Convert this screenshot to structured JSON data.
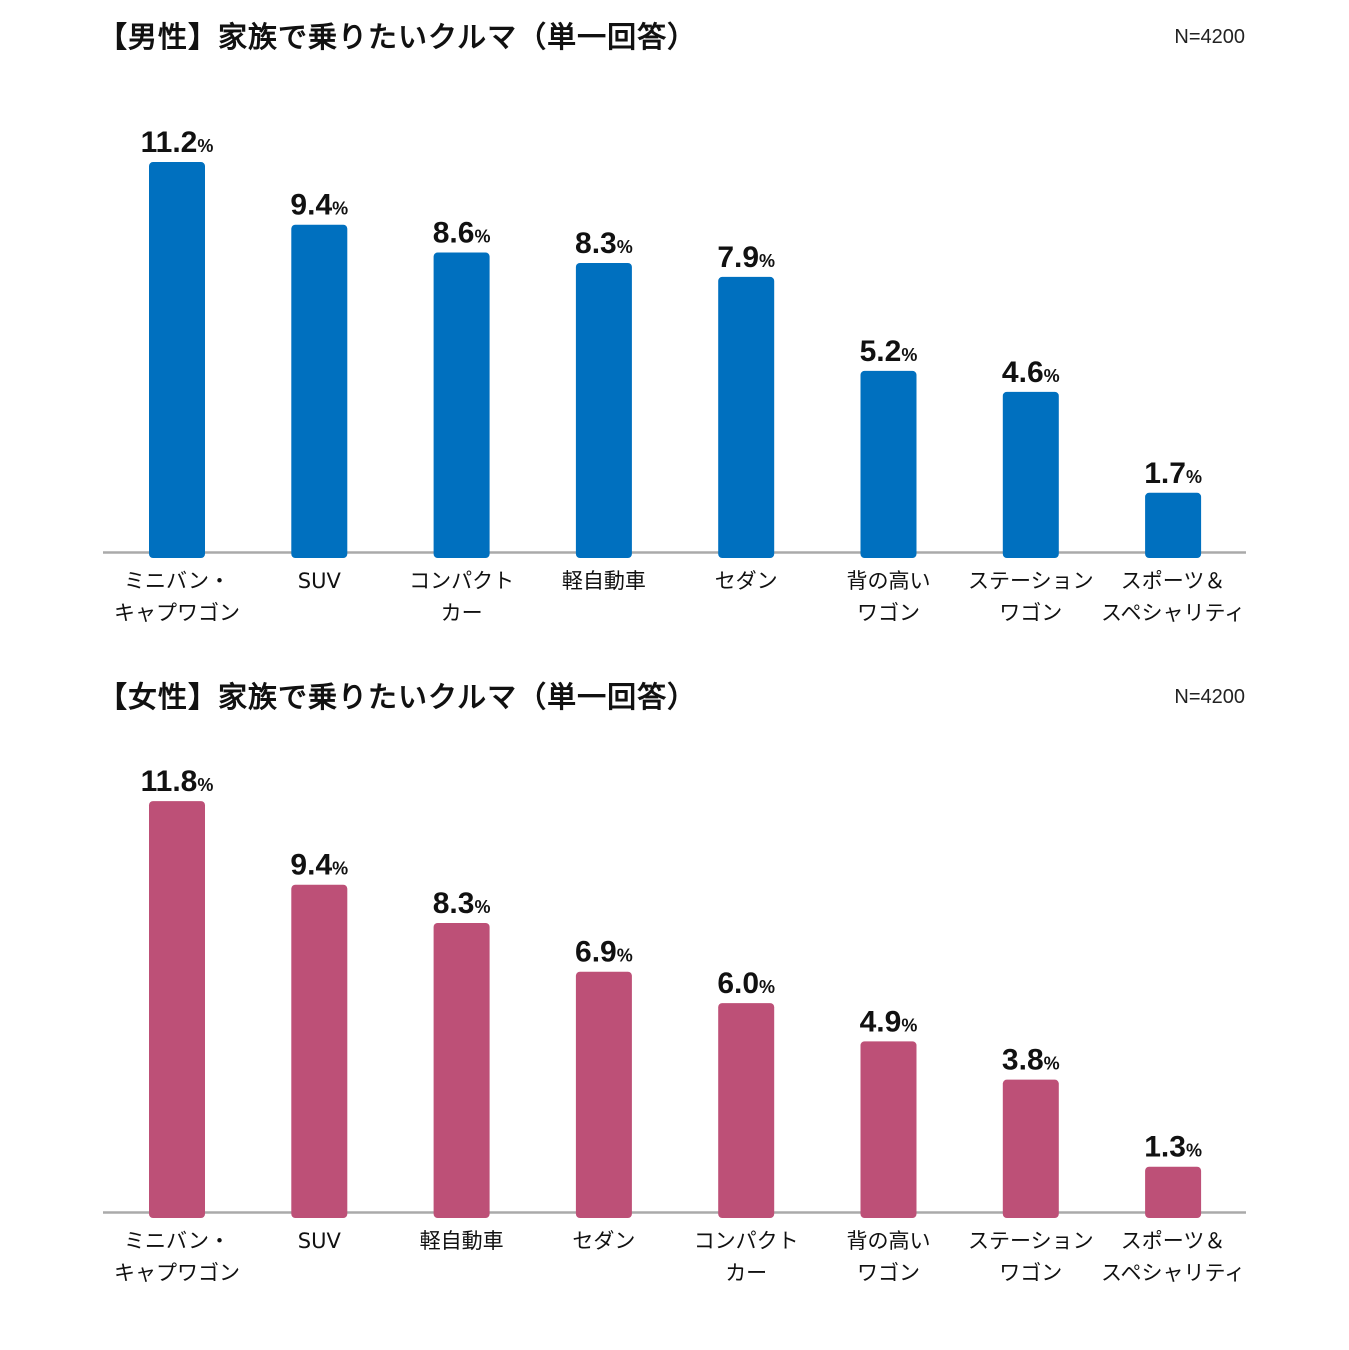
{
  "chart_data": [
    {
      "type": "bar",
      "title": "【男性】家族で乗りたいクルマ（単一回答）",
      "n_label": "N=4200",
      "unit": "%",
      "color": "#0070BF",
      "ylim": [
        0,
        12
      ],
      "categories": [
        [
          "ミニバン・",
          "キャプワゴン"
        ],
        [
          "SUV"
        ],
        [
          "コンパクト",
          "カー"
        ],
        [
          "軽自動車"
        ],
        [
          "セダン"
        ],
        [
          "背の高い",
          "ワゴン"
        ],
        [
          "ステーション",
          "ワゴン"
        ],
        [
          "スポーツ＆",
          "スペシャリティ"
        ]
      ],
      "values": [
        11.2,
        9.4,
        8.6,
        8.3,
        7.9,
        5.2,
        4.6,
        1.7
      ]
    },
    {
      "type": "bar",
      "title": "【女性】家族で乗りたいクルマ（単一回答）",
      "n_label": "N=4200",
      "unit": "%",
      "color": "#BD5077",
      "ylim": [
        0,
        12
      ],
      "categories": [
        [
          "ミニバン・",
          "キャプワゴン"
        ],
        [
          "SUV"
        ],
        [
          "軽自動車"
        ],
        [
          "セダン"
        ],
        [
          "コンパクト",
          "カー"
        ],
        [
          "背の高い",
          "ワゴン"
        ],
        [
          "ステーション",
          "ワゴン"
        ],
        [
          "スポーツ＆",
          "スペシャリティ"
        ]
      ],
      "values": [
        11.8,
        9.4,
        8.3,
        6.9,
        6.0,
        4.9,
        3.8,
        1.3
      ]
    }
  ]
}
